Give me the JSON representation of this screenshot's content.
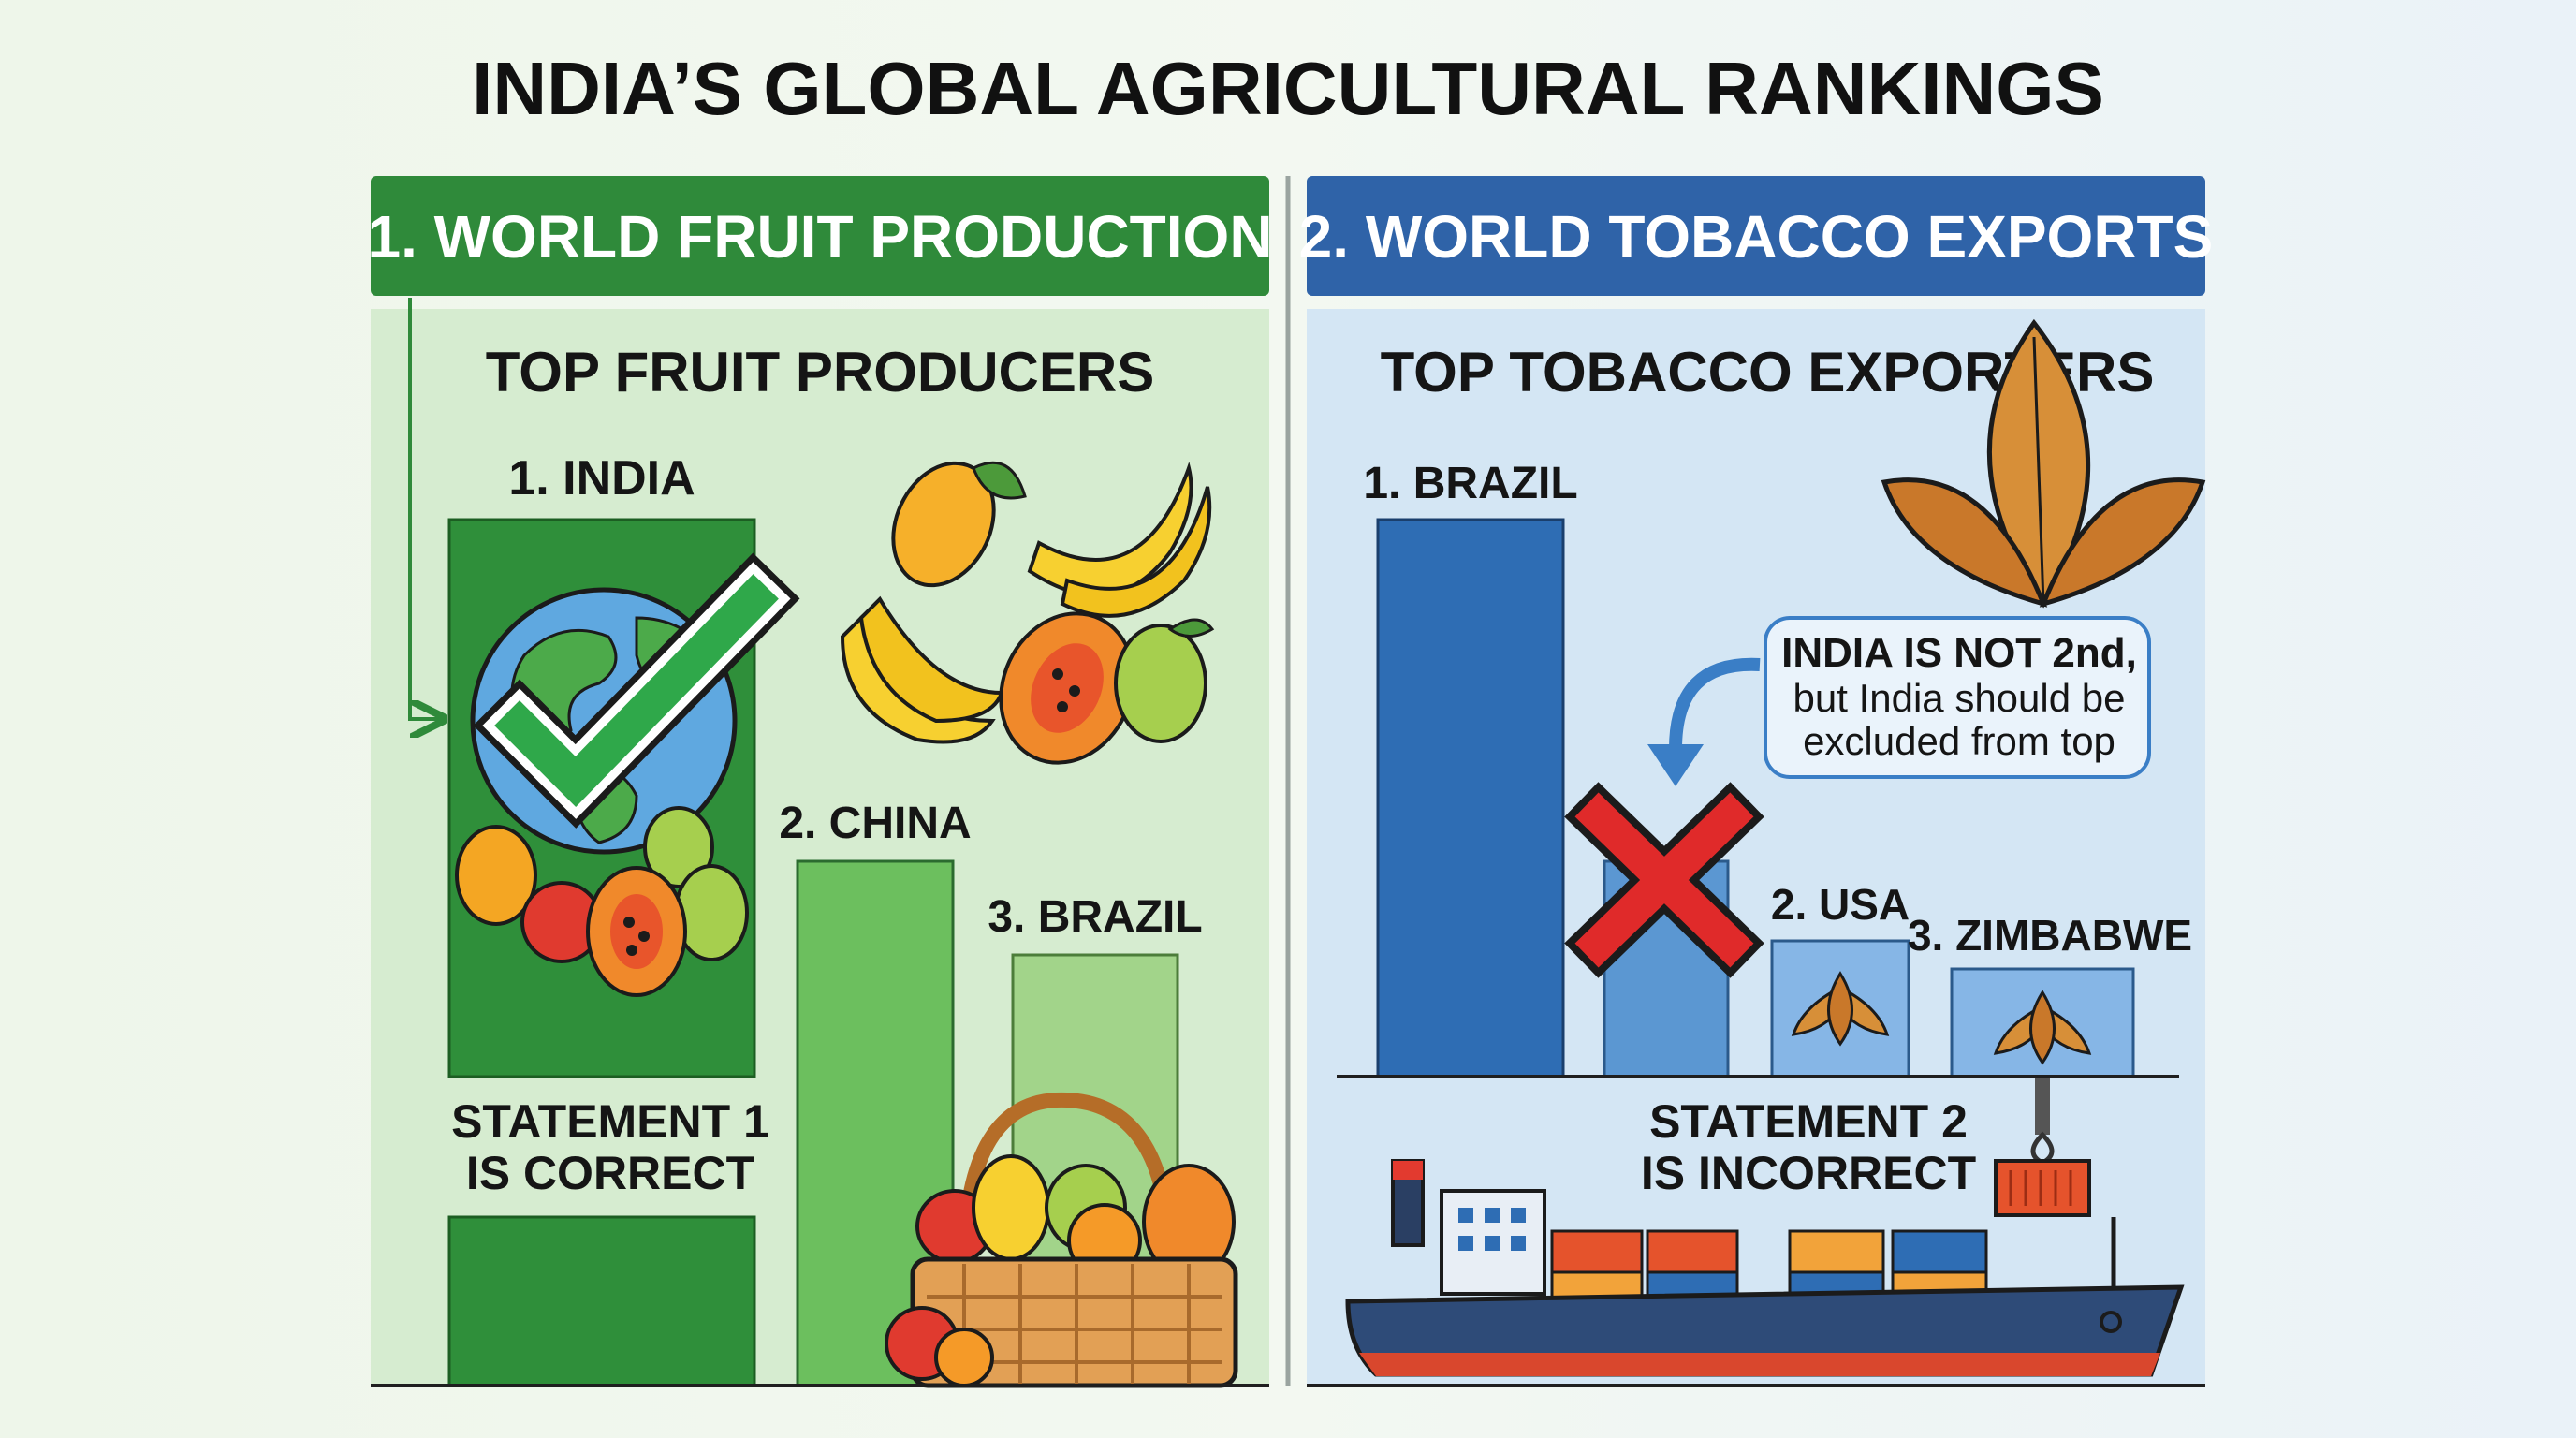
{
  "title": "INDIA’S GLOBAL AGRICULTURAL RANKINGS",
  "left_panel": {
    "header": "1. WORLD FRUIT PRODUCTION",
    "subtitle": "TOP FRUIT PRODUCERS",
    "ranks": [
      "1. INDIA",
      "2. CHINA",
      "3. BRAZIL"
    ],
    "statement": [
      "STATEMENT 1",
      "IS CORRECT"
    ],
    "colors": {
      "header": "#2f8a3a",
      "panel": "#d6ecd0",
      "bar1": "#2f8f3a",
      "bar2": "#6cbf5e",
      "bar3": "#a2d48a"
    }
  },
  "right_panel": {
    "header": "2. WORLD TOBACCO EXPORTS",
    "subtitle": "TOP TOBACCO EXPORTERS",
    "ranks": [
      "1. BRAZIL",
      "2. USA",
      "3. ZIMBABWE"
    ],
    "note": [
      "INDIA IS NOT 2nd,",
      "but India should be",
      "excluded from top"
    ],
    "statement": [
      "STATEMENT 2",
      "IS INCORRECT"
    ],
    "colors": {
      "header": "#2f63a8",
      "panel": "#d4e6f4",
      "bar1": "#2e6db4",
      "bar2": "#5b97d2",
      "bar3": "#86b6e6"
    }
  },
  "icons": [
    "globe-icon",
    "check-icon",
    "mango-icon",
    "banana-icon",
    "papaya-icon",
    "guava-icon",
    "apple-icon",
    "fruit-basket-icon",
    "tobacco-leaf-icon",
    "cross-icon",
    "cargo-ship-icon",
    "container-icon",
    "arrow-icon"
  ]
}
